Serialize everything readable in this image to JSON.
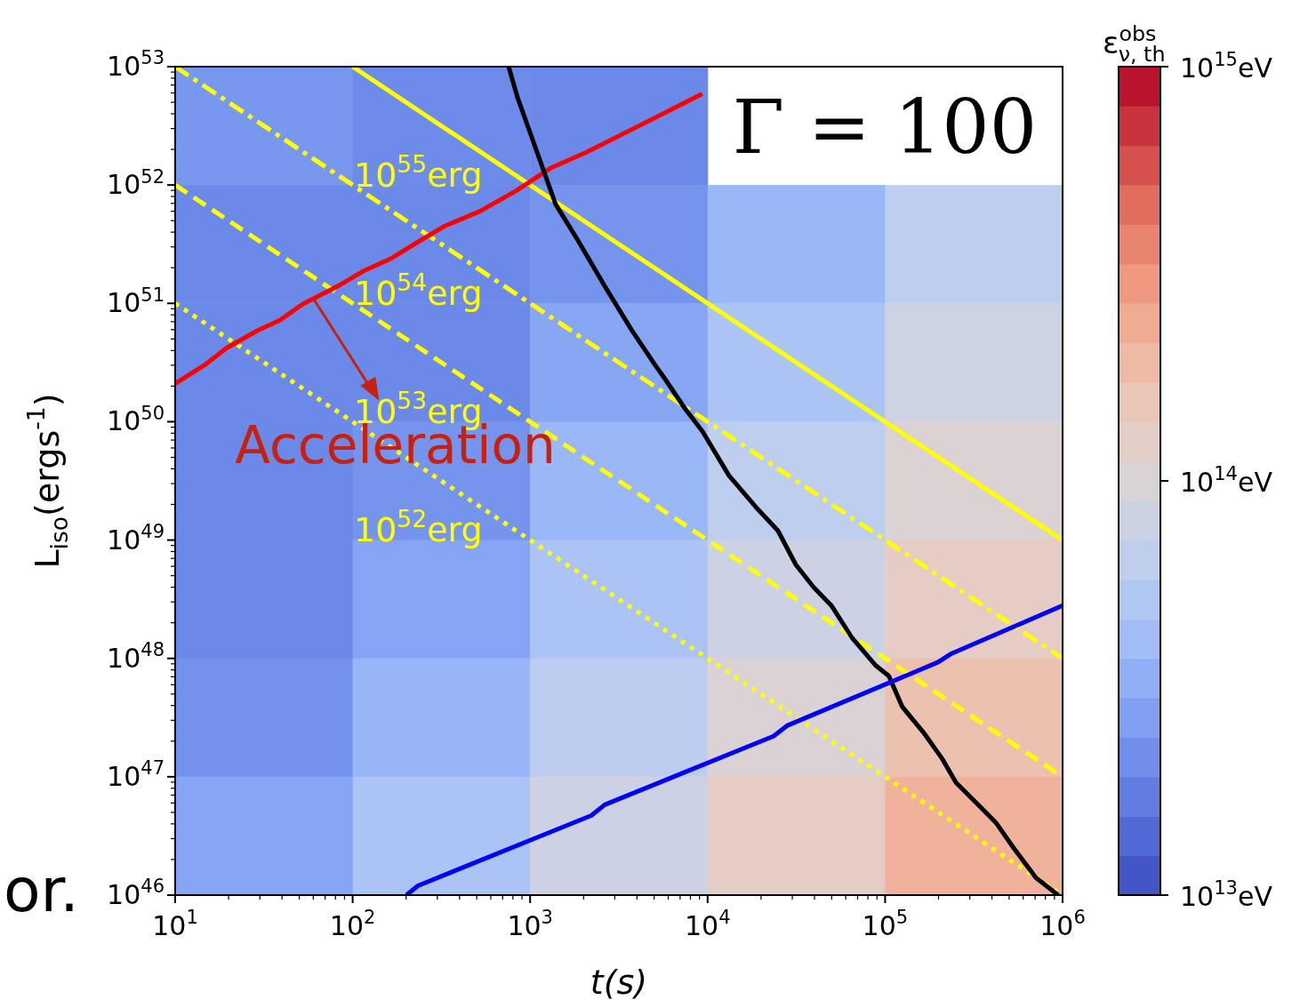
{
  "chart_data": [
    {
      "type": "heatmap",
      "clabel": "ε$^{obs}$$_{ν, th}$",
      "categories": [
        null,
        null,
        null,
        null,
        null
      ],
      "y_categories": [
        null,
        null,
        null,
        null,
        null,
        null,
        null
      ],
      "cells": [
        [
          13.38,
          13.31,
          13.3,
          null,
          null
        ],
        [
          13.3,
          13.3,
          13.36,
          13.58,
          13.8
        ],
        [
          13.3,
          13.3,
          13.47,
          13.69,
          13.91
        ],
        [
          13.3,
          13.36,
          13.58,
          13.8,
          14.02
        ],
        [
          13.3,
          13.46,
          13.68,
          13.9,
          14.12
        ],
        [
          13.35,
          13.57,
          13.79,
          14.01,
          14.23
        ],
        [
          13.46,
          13.68,
          13.9,
          14.12,
          14.34
        ]
      ],
      "clim": [
        13,
        15
      ],
      "cticks": [
        {
          "value": 13,
          "label": "10$^{13}$eV"
        },
        {
          "value": 14,
          "label": "10$^{14}$eV"
        },
        {
          "value": 15,
          "label": "10$^{15}$eV"
        }
      ]
    },
    {
      "type": "line",
      "xlabel": "t(s)",
      "ylabel": "L$_{iso}$(ergs$^{-1}$)",
      "log": "xy",
      "xlim": [
        10,
        1000000
      ],
      "ylim": [
        1e+46,
        1e+53
      ],
      "xticks": [
        {
          "value": 10,
          "label": "10$^{1}$"
        },
        {
          "value": 100,
          "label": "10$^{2}$"
        },
        {
          "value": 1000,
          "label": "10$^{3}$"
        },
        {
          "value": 10000,
          "label": "10$^{4}$"
        },
        {
          "value": 100000,
          "label": "10$^{5}$"
        },
        {
          "value": 1000000,
          "label": "10$^{6}$"
        }
      ],
      "yticks": [
        {
          "value": 1e+46,
          "label": "10$^{46}$"
        },
        {
          "value": 1e+47,
          "label": "10$^{47}$"
        },
        {
          "value": 1e+48,
          "label": "10$^{48}$"
        },
        {
          "value": 1e+49,
          "label": "10$^{49}$"
        },
        {
          "value": 1e+50,
          "label": "10$^{50}$"
        },
        {
          "value": 1e+51,
          "label": "10$^{51}$"
        },
        {
          "value": 1e+52,
          "label": "10$^{52}$"
        },
        {
          "value": 1e+53,
          "label": "10$^{53}$"
        }
      ],
      "series": [
        {
          "color": "#ffff00",
          "line_style": "solid",
          "x": [
            100,
            1000000
          ],
          "values": [
            1e+53,
            1e+49
          ]
        },
        {
          "color": "#ffff00",
          "line_style": "dashdot",
          "x": [
            10,
            1000000
          ],
          "values": [
            1e+53,
            1e+48
          ]
        },
        {
          "color": "#ffff00",
          "line_style": "dashed",
          "x": [
            10,
            1000000
          ],
          "values": [
            1e+52,
            1e+47
          ]
        },
        {
          "color": "#ffff00",
          "line_style": "dotted",
          "x": [
            10,
            1000000
          ],
          "values": [
            1e+51,
            1e+46
          ]
        },
        {
          "color": "#ff0000",
          "line_style": "solid",
          "x": [
            10,
            14.6,
            19.5,
            29.2,
            38.9,
            52,
            82.6,
            117,
            165,
            233,
            330,
            522,
            830,
            1315,
            2090,
            4170,
            9330
          ],
          "values": [
            2.1e+50,
            3e+50,
            4.2e+50,
            5.9e+50,
            7.2e+50,
            9.8e+50,
            1.4e+51,
            1.9e+51,
            2.4e+51,
            3.3e+51,
            4.5e+51,
            6e+51,
            8.9e+51,
            1.4e+52,
            1.9e+52,
            3.2e+52,
            5.9e+52
          ]
        },
        {
          "color": "#000000",
          "line_style": "solid",
          "x": [
            757,
            849,
            1045,
            1390,
            1860,
            2630,
            3720,
            5070,
            5750,
            7430,
            9350,
            13200,
            18700,
            24900,
            31400,
            39500,
            49800,
            65000,
            88700,
            105000,
            125000,
            167000,
            211000,
            251000,
            334000,
            421000,
            530000,
            708000,
            944000
          ],
          "values": [
            1e+53,
            5.5e+52,
            2.3e+52,
            6.9e+51,
            3.4e+51,
            1.4e+51,
            6e+50,
            3e+50,
            2.3e+50,
            1.3e+50,
            8.3e+49,
            3.5e+49,
            1.9e+49,
            1.2e+49,
            6.2e+48,
            4e+48,
            2.8e+48,
            1.5e+48,
            8.7e+47,
            7.1e+47,
            3.9e+47,
            2.3e+47,
            1.4e+47,
            8.9e+46,
            5.8e+46,
            4.1e+46,
            2.5e+46,
            1.4e+46,
            1e+46
          ]
        },
        {
          "color": "#0000ff",
          "line_style": "solid",
          "x": [
            201,
            233,
            2210,
            2630,
            23500,
            28000,
            199000,
            237000,
            1000000
          ],
          "values": [
            1e+46,
            1.2e+46,
            4.7e+46,
            5.8e+46,
            2.2e+47,
            2.7e+47,
            9.3e+47,
            1.1e+48,
            2.8e+48
          ]
        }
      ],
      "annotations": [
        "10$^{55}$erg",
        "10$^{54}$erg",
        "10$^{53}$erg",
        "10$^{52}$erg",
        {
          "text": "Acceleration",
          "x": 60,
          "y": 1.1e+51
        },
        "Γ = 100",
        "or."
      ]
    }
  ]
}
